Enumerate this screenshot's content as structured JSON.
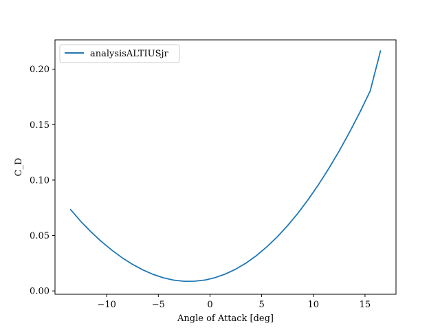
{
  "chart_data": {
    "type": "line",
    "xlabel": "Angle of Attack [deg]",
    "ylabel": "C_D",
    "xlim": [
      -15,
      18
    ],
    "ylim": [
      -0.003,
      0.2265
    ],
    "xticks": [
      -10,
      -5,
      0,
      5,
      10,
      15
    ],
    "xtick_labels": [
      "−10",
      "−5",
      "0",
      "5",
      "10",
      "15"
    ],
    "yticks": [
      0.0,
      0.05,
      0.1,
      0.15,
      0.2
    ],
    "ytick_labels": [
      "0.00",
      "0.05",
      "0.10",
      "0.15",
      "0.20"
    ],
    "grid": false,
    "legend": "top-left",
    "series": [
      {
        "name": "analysisALTIUSjr",
        "color": "#1f77b4",
        "x": [
          -13.5,
          -12.5,
          -11.5,
          -10.5,
          -9.5,
          -8.5,
          -7.5,
          -6.5,
          -5.5,
          -4.5,
          -3.5,
          -2.5,
          -1.5,
          -0.5,
          0.5,
          1.5,
          2.5,
          3.5,
          4.5,
          5.5,
          6.5,
          7.5,
          8.5,
          9.5,
          10.5,
          11.5,
          12.5,
          13.5,
          14.5,
          15.5,
          16.5
        ],
        "y": [
          0.0735,
          0.0627,
          0.0531,
          0.0445,
          0.0368,
          0.0299,
          0.024,
          0.019,
          0.0149,
          0.0118,
          0.0097,
          0.0087,
          0.0088,
          0.0098,
          0.012,
          0.0153,
          0.0197,
          0.0252,
          0.0319,
          0.0398,
          0.0487,
          0.0588,
          0.07,
          0.0824,
          0.0959,
          0.1105,
          0.1262,
          0.1431,
          0.1611,
          0.1803,
          0.2165
        ]
      }
    ]
  }
}
